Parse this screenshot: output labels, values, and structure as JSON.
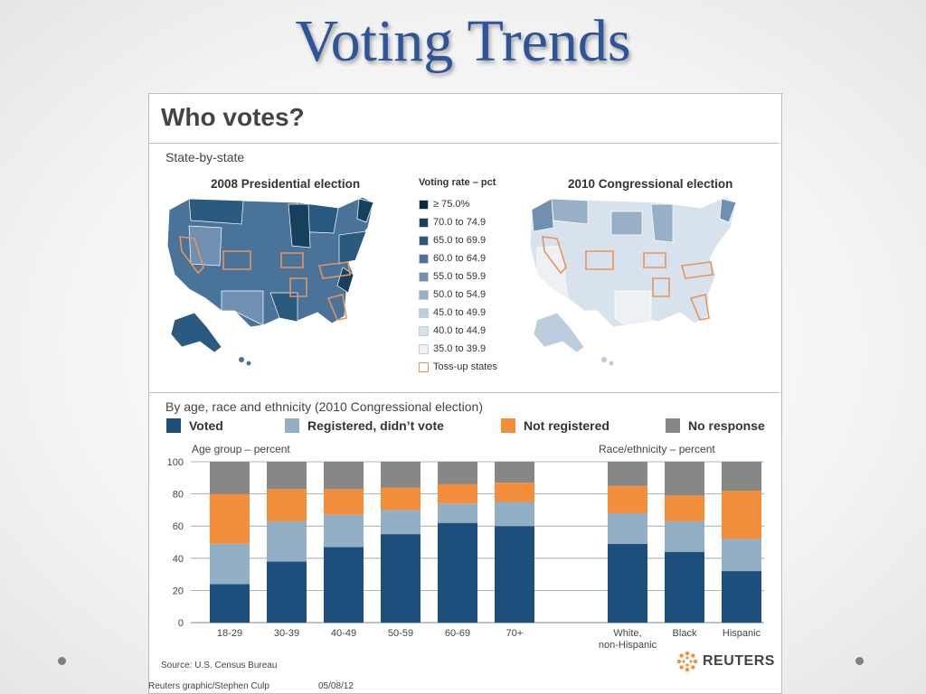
{
  "slide": {
    "title": "Voting Trends"
  },
  "infographic": {
    "heading": "Who votes?",
    "state_section": "State-by-state",
    "map_2008_title": "2008 Presidential election",
    "map_2010_title": "2010 Congressional election",
    "legend_title": "Voting rate – pct",
    "legend": [
      {
        "label": "≥ 75.0%",
        "color": "#0a2840"
      },
      {
        "label": "70.0 to 74.9",
        "color": "#17405f"
      },
      {
        "label": "65.0 to 69.9",
        "color": "#2b5a80"
      },
      {
        "label": "60.0 to 64.9",
        "color": "#4a7399"
      },
      {
        "label": "55.0 to 59.9",
        "color": "#6f90b0"
      },
      {
        "label": "50.0 to 54.9",
        "color": "#97b0c8"
      },
      {
        "label": "45.0 to 49.9",
        "color": "#bccdde"
      },
      {
        "label": "40.0 to 44.9",
        "color": "#d8e2ec"
      },
      {
        "label": "35.0 to 39.9",
        "color": "#edf1f5"
      },
      {
        "label": "Toss-up states",
        "color": "#ffffff",
        "border": "#e8945a"
      }
    ],
    "demo_section": "By age, race and ethnicity (2010 Congressional election)",
    "source": "Source: U.S. Census Bureau",
    "brand": "REUTERS"
  },
  "footer": {
    "credit": "Reuters graphic/Stephen Culp",
    "date": "05/08/12"
  },
  "chart_data": {
    "type": "bar",
    "stacked": true,
    "x_groups": [
      {
        "label": "Age group – percent",
        "categories": [
          "18-29",
          "30-39",
          "40-49",
          "50-59",
          "60-69",
          "70+"
        ]
      },
      {
        "label": "Race/ethnicity – percent",
        "categories": [
          "White,\nnon-Hispanic",
          "Black",
          "Hispanic"
        ]
      }
    ],
    "categories": [
      "18-29",
      "30-39",
      "40-49",
      "50-59",
      "60-69",
      "70+",
      "White,\nnon-Hispanic",
      "Black",
      "Hispanic"
    ],
    "series": [
      {
        "name": "Voted",
        "color": "#1c4f7c",
        "values": [
          24,
          38,
          47,
          55,
          62,
          60,
          49,
          44,
          32
        ]
      },
      {
        "name": "Registered, didn’t vote",
        "color": "#93afc6",
        "values": [
          25,
          25,
          20,
          15,
          12,
          15,
          19,
          19,
          20
        ]
      },
      {
        "name": "Not registered",
        "color": "#f28e3c",
        "values": [
          31,
          20,
          16,
          14,
          12,
          12,
          17,
          16,
          30
        ]
      },
      {
        "name": "No response",
        "color": "#878787",
        "values": [
          20,
          17,
          17,
          16,
          14,
          13,
          15,
          21,
          18
        ]
      }
    ],
    "ylim": [
      0,
      100
    ],
    "yticks": [
      0,
      20,
      40,
      60,
      80,
      100
    ]
  }
}
